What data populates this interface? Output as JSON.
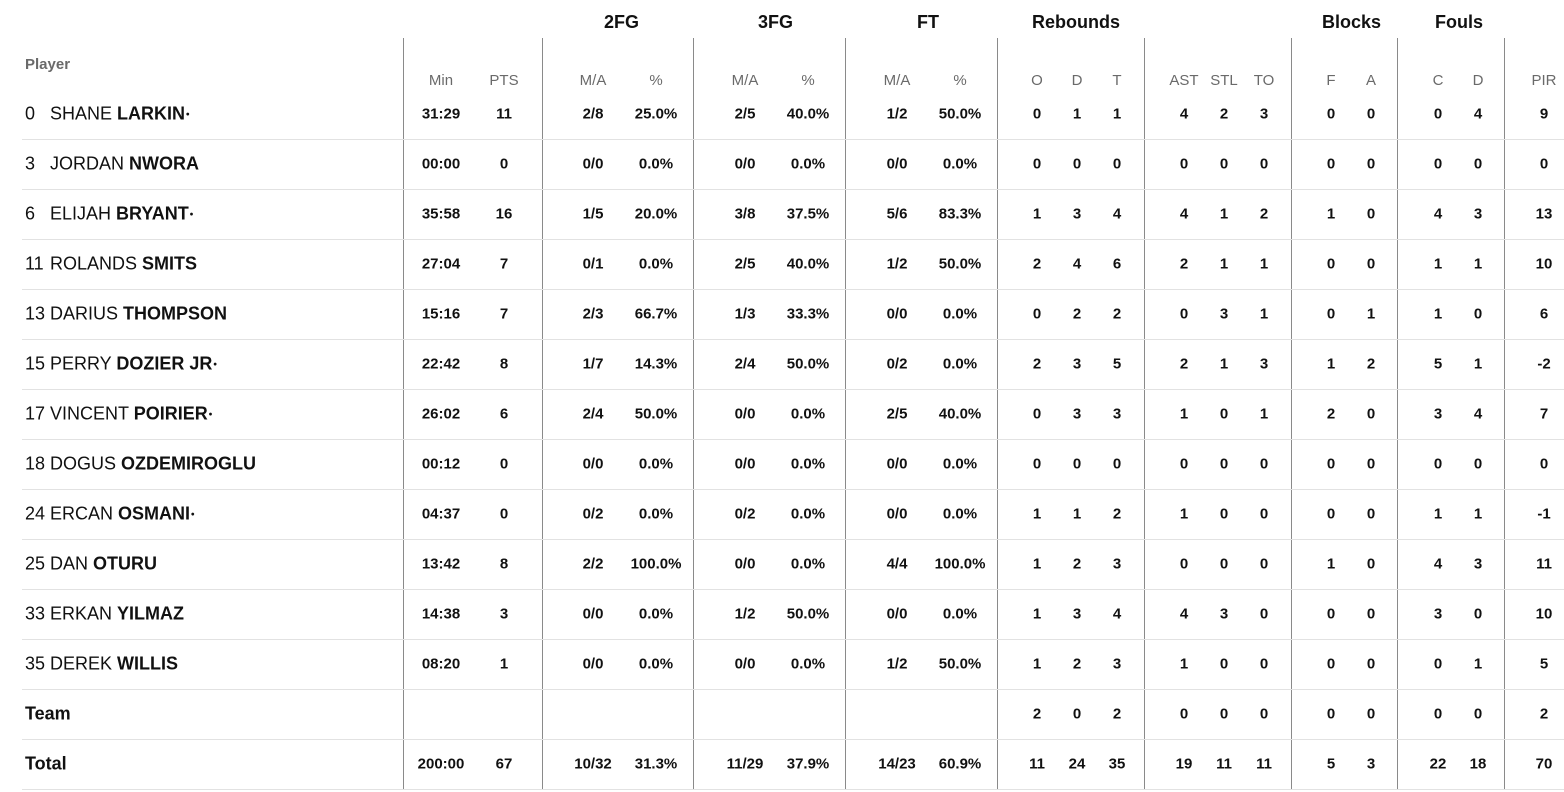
{
  "groups": {
    "fg2": "2FG",
    "fg3": "3FG",
    "ft": "FT",
    "rebounds": "Rebounds",
    "blocks": "Blocks",
    "fouls": "Fouls"
  },
  "player_label": "Player",
  "columns": [
    "Min",
    "PTS",
    "M/A",
    "%",
    "M/A",
    "%",
    "M/A",
    "%",
    "O",
    "D",
    "T",
    "AST",
    "STL",
    "TO",
    "F",
    "A",
    "C",
    "D",
    "PIR"
  ],
  "starter_mark": "•",
  "players": [
    {
      "number": "0",
      "first": "SHANE",
      "last": "LARKIN",
      "starter": true,
      "stats": [
        "31:29",
        "11",
        "2/8",
        "25.0%",
        "2/5",
        "40.0%",
        "1/2",
        "50.0%",
        "0",
        "1",
        "1",
        "4",
        "2",
        "3",
        "0",
        "0",
        "0",
        "4",
        "9"
      ]
    },
    {
      "number": "3",
      "first": "JORDAN",
      "last": "NWORA",
      "starter": false,
      "stats": [
        "00:00",
        "0",
        "0/0",
        "0.0%",
        "0/0",
        "0.0%",
        "0/0",
        "0.0%",
        "0",
        "0",
        "0",
        "0",
        "0",
        "0",
        "0",
        "0",
        "0",
        "0",
        "0"
      ]
    },
    {
      "number": "6",
      "first": "ELIJAH",
      "last": "BRYANT",
      "starter": true,
      "stats": [
        "35:58",
        "16",
        "1/5",
        "20.0%",
        "3/8",
        "37.5%",
        "5/6",
        "83.3%",
        "1",
        "3",
        "4",
        "4",
        "1",
        "2",
        "1",
        "0",
        "4",
        "3",
        "13"
      ]
    },
    {
      "number": "11",
      "first": "ROLANDS",
      "last": "SMITS",
      "starter": false,
      "stats": [
        "27:04",
        "7",
        "0/1",
        "0.0%",
        "2/5",
        "40.0%",
        "1/2",
        "50.0%",
        "2",
        "4",
        "6",
        "2",
        "1",
        "1",
        "0",
        "0",
        "1",
        "1",
        "10"
      ]
    },
    {
      "number": "13",
      "first": "DARIUS",
      "last": "THOMPSON",
      "starter": false,
      "stats": [
        "15:16",
        "7",
        "2/3",
        "66.7%",
        "1/3",
        "33.3%",
        "0/0",
        "0.0%",
        "0",
        "2",
        "2",
        "0",
        "3",
        "1",
        "0",
        "1",
        "1",
        "0",
        "6"
      ]
    },
    {
      "number": "15",
      "first": "PERRY",
      "last": "DOZIER JR",
      "starter": true,
      "stats": [
        "22:42",
        "8",
        "1/7",
        "14.3%",
        "2/4",
        "50.0%",
        "0/2",
        "0.0%",
        "2",
        "3",
        "5",
        "2",
        "1",
        "3",
        "1",
        "2",
        "5",
        "1",
        "-2"
      ]
    },
    {
      "number": "17",
      "first": "VINCENT",
      "last": "POIRIER",
      "starter": true,
      "stats": [
        "26:02",
        "6",
        "2/4",
        "50.0%",
        "0/0",
        "0.0%",
        "2/5",
        "40.0%",
        "0",
        "3",
        "3",
        "1",
        "0",
        "1",
        "2",
        "0",
        "3",
        "4",
        "7"
      ]
    },
    {
      "number": "18",
      "first": "DOGUS",
      "last": "OZDEMIROGLU",
      "starter": false,
      "stats": [
        "00:12",
        "0",
        "0/0",
        "0.0%",
        "0/0",
        "0.0%",
        "0/0",
        "0.0%",
        "0",
        "0",
        "0",
        "0",
        "0",
        "0",
        "0",
        "0",
        "0",
        "0",
        "0"
      ]
    },
    {
      "number": "24",
      "first": "ERCAN",
      "last": "OSMANI",
      "starter": true,
      "stats": [
        "04:37",
        "0",
        "0/2",
        "0.0%",
        "0/2",
        "0.0%",
        "0/0",
        "0.0%",
        "1",
        "1",
        "2",
        "1",
        "0",
        "0",
        "0",
        "0",
        "1",
        "1",
        "-1"
      ]
    },
    {
      "number": "25",
      "first": "DAN",
      "last": "OTURU",
      "starter": false,
      "stats": [
        "13:42",
        "8",
        "2/2",
        "100.0%",
        "0/0",
        "0.0%",
        "4/4",
        "100.0%",
        "1",
        "2",
        "3",
        "0",
        "0",
        "0",
        "1",
        "0",
        "4",
        "3",
        "11"
      ]
    },
    {
      "number": "33",
      "first": "ERKAN",
      "last": "YILMAZ",
      "starter": false,
      "stats": [
        "14:38",
        "3",
        "0/0",
        "0.0%",
        "1/2",
        "50.0%",
        "0/0",
        "0.0%",
        "1",
        "3",
        "4",
        "4",
        "3",
        "0",
        "0",
        "0",
        "3",
        "0",
        "10"
      ]
    },
    {
      "number": "35",
      "first": "DEREK",
      "last": "WILLIS",
      "starter": false,
      "stats": [
        "08:20",
        "1",
        "0/0",
        "0.0%",
        "0/0",
        "0.0%",
        "1/2",
        "50.0%",
        "1",
        "2",
        "3",
        "1",
        "0",
        "0",
        "0",
        "0",
        "0",
        "1",
        "5"
      ]
    }
  ],
  "team": {
    "label": "Team",
    "stats": [
      "",
      "",
      "",
      "",
      "",
      "",
      "",
      "",
      "2",
      "0",
      "2",
      "0",
      "0",
      "0",
      "0",
      "0",
      "0",
      "0",
      "2"
    ]
  },
  "total": {
    "label": "Total",
    "stats": [
      "200:00",
      "67",
      "10/32",
      "31.3%",
      "11/29",
      "37.9%",
      "14/23",
      "60.9%",
      "11",
      "24",
      "35",
      "19",
      "11",
      "11",
      "5",
      "3",
      "22",
      "18",
      "70"
    ]
  }
}
